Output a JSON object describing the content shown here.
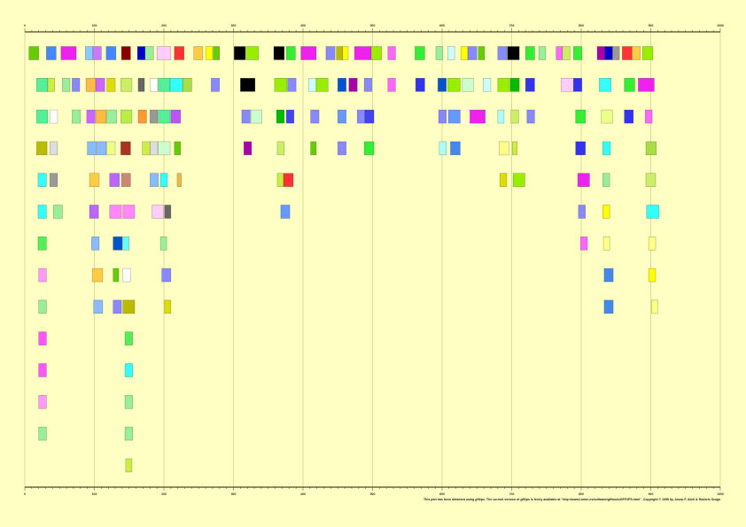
{
  "axis": {
    "range": [
      0,
      1000
    ],
    "major_step": 100,
    "minor_step": 10,
    "tick_labels": [
      "0",
      "100",
      "200",
      "300",
      "400",
      "500",
      "600",
      "700",
      "800",
      "900",
      "1000"
    ],
    "grid": true,
    "color": "#4a4a20",
    "grid_color": "#cccc88"
  },
  "background": "#ffffc4",
  "tracks": [
    [
      [
        6,
        20,
        "#66cc00"
      ],
      [
        31,
        45,
        "#4488ff"
      ],
      [
        52,
        74,
        "#ee22ee"
      ],
      [
        87,
        98,
        "#88ccff"
      ],
      [
        98,
        110,
        "#cc77ff"
      ],
      [
        117,
        131,
        "#4488ff"
      ],
      [
        139,
        152,
        "#880000"
      ],
      [
        162,
        173,
        "#0000cc"
      ],
      [
        173,
        185,
        "#99ee99"
      ],
      [
        190,
        210,
        "#ffccff"
      ],
      [
        215,
        229,
        "#ff3333"
      ],
      [
        243,
        256,
        "#ffcc44"
      ],
      [
        260,
        270,
        "#ffff00"
      ],
      [
        271,
        280,
        "#66cc00"
      ],
      [
        301,
        317,
        "#000000"
      ],
      [
        318,
        336,
        "#99ee00"
      ],
      [
        358,
        373,
        "#000000"
      ],
      [
        376,
        389,
        "#33ee33"
      ],
      [
        397,
        419,
        "#ee22ee"
      ],
      [
        433,
        446,
        "#8888ff"
      ],
      [
        448,
        457,
        "#bbbb00"
      ],
      [
        457,
        465,
        "#ffff00"
      ],
      [
        474,
        498,
        "#ee22ee"
      ],
      [
        498,
        513,
        "#99ee00"
      ],
      [
        522,
        533,
        "#ff66ff"
      ],
      [
        561,
        575,
        "#33ee33"
      ],
      [
        591,
        601,
        "#99ee99"
      ],
      [
        608,
        618,
        "#ccffff"
      ],
      [
        627,
        637,
        "#ffff00"
      ],
      [
        637,
        650,
        "#8888ff"
      ],
      [
        652,
        661,
        "#66cc00"
      ],
      [
        680,
        693,
        "#8888ff"
      ],
      [
        694,
        711,
        "#000000"
      ],
      [
        720,
        733,
        "#33ee33"
      ],
      [
        739,
        749,
        "#99ee99"
      ],
      [
        764,
        773,
        "#ff66ff"
      ],
      [
        773,
        784,
        "#ccee66"
      ],
      [
        789,
        801,
        "#33ee33"
      ],
      [
        823,
        834,
        "#aa00aa"
      ],
      [
        834,
        845,
        "#0000cc"
      ],
      [
        845,
        855,
        "#999999"
      ],
      [
        859,
        873,
        "#ff3333"
      ],
      [
        873,
        885,
        "#ffcc44"
      ],
      [
        888,
        903,
        "#99ee00"
      ]
    ],
    [
      [
        17,
        33,
        "#55ee99"
      ],
      [
        33,
        43,
        "#ccee44"
      ],
      [
        54,
        65,
        "#99ee99"
      ],
      [
        68,
        79,
        "#8888ff"
      ],
      [
        88,
        102,
        "#ffbb44"
      ],
      [
        102,
        115,
        "#cc66ff"
      ],
      [
        118,
        130,
        "#dddd00"
      ],
      [
        138,
        154,
        "#ccee66"
      ],
      [
        163,
        172,
        "#666666"
      ],
      [
        180,
        191,
        "#ffffff"
      ],
      [
        192,
        209,
        "#55ee99"
      ],
      [
        209,
        227,
        "#33ffff"
      ],
      [
        227,
        240,
        "#aadd44"
      ],
      [
        268,
        280,
        "#8888ff"
      ],
      [
        310,
        331,
        "#000000"
      ],
      [
        359,
        377,
        "#99ee00"
      ],
      [
        378,
        390,
        "#8888ff"
      ],
      [
        408,
        419,
        "#ccffff"
      ],
      [
        419,
        436,
        "#99ee00"
      ],
      [
        450,
        462,
        "#0055cc"
      ],
      [
        466,
        478,
        "#aa00aa"
      ],
      [
        488,
        499,
        "#8888ff"
      ],
      [
        522,
        533,
        "#ff66ff"
      ],
      [
        562,
        575,
        "#3333ee"
      ],
      [
        594,
        606,
        "#0055cc"
      ],
      [
        608,
        626,
        "#99ee00"
      ],
      [
        629,
        645,
        "#ccffcc"
      ],
      [
        659,
        670,
        "#ccffff"
      ],
      [
        680,
        697,
        "#99ee00"
      ],
      [
        698,
        711,
        "#00bb00"
      ],
      [
        720,
        733,
        "#3333ee"
      ],
      [
        771,
        789,
        "#ffccff"
      ],
      [
        789,
        801,
        "#3333ee"
      ],
      [
        826,
        843,
        "#33ffff"
      ],
      [
        862,
        877,
        "#33ee33"
      ],
      [
        882,
        905,
        "#ee22ee"
      ]
    ],
    [
      [
        17,
        33,
        "#55ee99"
      ],
      [
        36,
        47,
        "#ffffff"
      ],
      [
        68,
        80,
        "#99ee99"
      ],
      [
        89,
        101,
        "#cc66ff"
      ],
      [
        102,
        117,
        "#ffbb44"
      ],
      [
        118,
        132,
        "#99ee99"
      ],
      [
        138,
        154,
        "#bbee44"
      ],
      [
        163,
        175,
        "#ff9933"
      ],
      [
        180,
        191,
        "#999999"
      ],
      [
        192,
        209,
        "#55ee99"
      ],
      [
        210,
        224,
        "#bb55ff"
      ],
      [
        312,
        324,
        "#8888ff"
      ],
      [
        325,
        341,
        "#ccffcc"
      ],
      [
        362,
        373,
        "#00bb00"
      ],
      [
        376,
        387,
        "#4444ee"
      ],
      [
        411,
        423,
        "#8888ff"
      ],
      [
        450,
        462,
        "#6699ff"
      ],
      [
        478,
        489,
        "#8888ff"
      ],
      [
        489,
        502,
        "#4444ee"
      ],
      [
        595,
        606,
        "#8888ff"
      ],
      [
        609,
        626,
        "#6699ff"
      ],
      [
        640,
        662,
        "#ee22ee"
      ],
      [
        680,
        689,
        "#aaffff"
      ],
      [
        699,
        710,
        "#ccee66"
      ],
      [
        722,
        733,
        "#8888ff"
      ],
      [
        792,
        806,
        "#33ee33"
      ],
      [
        829,
        845,
        "#eeff88"
      ],
      [
        862,
        875,
        "#3333ee"
      ],
      [
        892,
        902,
        "#ff66ff"
      ]
    ],
    [
      [
        17,
        32,
        "#bbbb00"
      ],
      [
        36,
        47,
        "#dddddd"
      ],
      [
        90,
        103,
        "#88bbff"
      ],
      [
        104,
        117,
        "#88bbff"
      ],
      [
        118,
        130,
        "#eeff88"
      ],
      [
        138,
        152,
        "#aa3322"
      ],
      [
        169,
        180,
        "#ccee44"
      ],
      [
        180,
        191,
        "#dddddd"
      ],
      [
        192,
        209,
        "#ccffcc"
      ],
      [
        215,
        224,
        "#66cc00"
      ],
      [
        315,
        326,
        "#aa00aa"
      ],
      [
        363,
        373,
        "#ccee66"
      ],
      [
        411,
        419,
        "#66cc00"
      ],
      [
        450,
        462,
        "#8888ff"
      ],
      [
        488,
        502,
        "#33ee33"
      ],
      [
        596,
        606,
        "#aaffff"
      ],
      [
        612,
        626,
        "#4488ee"
      ],
      [
        682,
        696,
        "#ffff88"
      ],
      [
        701,
        708,
        "#ccee44"
      ],
      [
        792,
        806,
        "#3333ee"
      ],
      [
        831,
        842,
        "#33ffff"
      ],
      [
        893,
        908,
        "#aadd44"
      ]
    ],
    [
      [
        19,
        31,
        "#33ffff"
      ],
      [
        36,
        47,
        "#999999"
      ],
      [
        93,
        107,
        "#ffcc44"
      ],
      [
        122,
        136,
        "#bb66ff"
      ],
      [
        139,
        152,
        "#cc8877"
      ],
      [
        180,
        192,
        "#88bbff"
      ],
      [
        195,
        205,
        "#33ffff"
      ],
      [
        219,
        225,
        "#eebb44"
      ],
      [
        363,
        372,
        "#ccee44"
      ],
      [
        372,
        386,
        "#ff3333"
      ],
      [
        683,
        693,
        "#dddd00"
      ],
      [
        702,
        719,
        "#99ee00"
      ],
      [
        795,
        812,
        "#ee22ee"
      ],
      [
        831,
        841,
        "#99ee99"
      ],
      [
        893,
        907,
        "#ccee66"
      ]
    ],
    [
      [
        19,
        31,
        "#33ffff"
      ],
      [
        41,
        54,
        "#99ee99"
      ],
      [
        93,
        106,
        "#bb66ff"
      ],
      [
        122,
        139,
        "#ff88ff"
      ],
      [
        141,
        158,
        "#ff88ff"
      ],
      [
        183,
        199,
        "#ffccff"
      ],
      [
        201,
        210,
        "#666666"
      ],
      [
        368,
        381,
        "#6699ff"
      ],
      [
        796,
        806,
        "#8888ff"
      ],
      [
        831,
        841,
        "#ffff00"
      ],
      [
        894,
        912,
        "#33ffff"
      ]
    ],
    [
      [
        19,
        31,
        "#55ee55"
      ],
      [
        96,
        107,
        "#88bbff"
      ],
      [
        127,
        140,
        "#0055cc"
      ],
      [
        141,
        150,
        "#66ffff"
      ],
      [
        195,
        204,
        "#99ee99"
      ],
      [
        799,
        809,
        "#ff66ff"
      ],
      [
        832,
        841,
        "#ffff88"
      ],
      [
        897,
        907,
        "#ffff88"
      ]
    ],
    [
      [
        20,
        31,
        "#ff99ff"
      ],
      [
        97,
        112,
        "#ffcc44"
      ],
      [
        127,
        135,
        "#66cc00"
      ],
      [
        141,
        152,
        "#ffffff"
      ],
      [
        197,
        210,
        "#8888ff"
      ],
      [
        833,
        846,
        "#4488ee"
      ],
      [
        897,
        907,
        "#ffff00"
      ]
    ],
    [
      [
        20,
        31,
        "#99ee99"
      ],
      [
        99,
        112,
        "#88bbff"
      ],
      [
        127,
        139,
        "#8888ff"
      ],
      [
        141,
        158,
        "#bbbb00"
      ],
      [
        201,
        210,
        "#dddd00"
      ],
      [
        833,
        846,
        "#4488ee"
      ],
      [
        901,
        910,
        "#ffff88"
      ]
    ],
    [
      [
        20,
        31,
        "#ff55ff"
      ],
      [
        144,
        155,
        "#55ee55"
      ]
    ],
    [
      [
        20,
        31,
        "#ff55ff"
      ],
      [
        144,
        155,
        "#33ffff"
      ]
    ],
    [
      [
        20,
        31,
        "#ff99ff"
      ],
      [
        144,
        155,
        "#99ee99"
      ]
    ],
    [
      [
        20,
        31,
        "#99ee99"
      ],
      [
        144,
        155,
        "#99ee99"
      ]
    ],
    [
      [
        145,
        154,
        "#ccee44"
      ]
    ]
  ],
  "footer": "This plot has been obtained using gff2ps. The current version of gff2ps is freely available at \"http://www1.imim.es/software/gfftools/GFF2PS.html\".  Copyright © 1999 by Josep F. Abril & Roderic Guigo"
}
